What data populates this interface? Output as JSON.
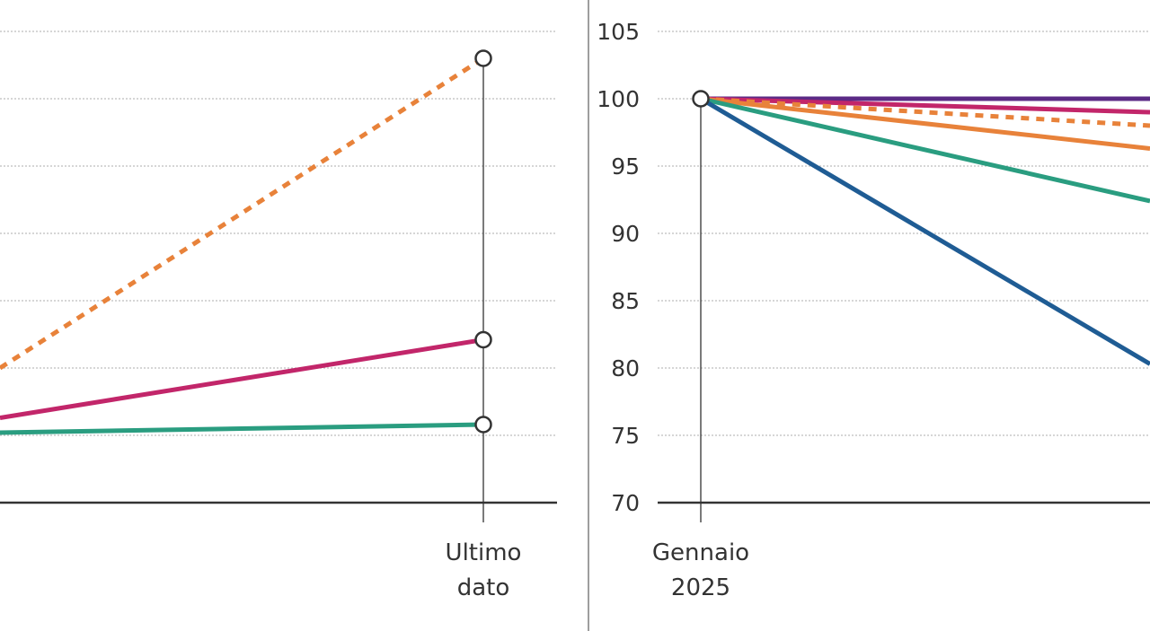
{
  "colors": {
    "grid": "#bdbdbd",
    "axis": "#333333",
    "divider": "#9e9e9e",
    "marker_fill": "#ffffff"
  },
  "chart_data": [
    {
      "type": "line",
      "title": "",
      "xlabel": "",
      "ylabel": "",
      "x_categories": [
        "",
        "Ultimo dato"
      ],
      "category_labels": [
        [
          "Ultimo",
          "dato"
        ]
      ],
      "ylim": [
        70,
        105
      ],
      "yticks": [
        70,
        75,
        80,
        85,
        90,
        95,
        100,
        105
      ],
      "ytick_labels_visible": false,
      "grid": true,
      "series": [
        {
          "color": "#e8823a",
          "dashed": true,
          "values": [
            80,
            103
          ]
        },
        {
          "color": "#c2266a",
          "values": [
            76.3,
            82.1
          ]
        },
        {
          "color": "#2a9d80",
          "values": [
            75.2,
            75.8
          ]
        }
      ]
    },
    {
      "type": "line",
      "title": "",
      "xlabel": "",
      "ylabel": "",
      "x_categories": [
        "Gennaio 2025",
        ""
      ],
      "category_labels": [
        [
          "Gennaio",
          "2025"
        ]
      ],
      "ylim": [
        70,
        105
      ],
      "yticks": [
        70,
        75,
        80,
        85,
        90,
        95,
        100,
        105
      ],
      "ytick_labels": [
        "70",
        "75",
        "80",
        "85",
        "90",
        "95",
        "100",
        "105"
      ],
      "grid": true,
      "series": [
        {
          "color": "#5b2a86",
          "values": [
            100,
            100
          ]
        },
        {
          "color": "#c2266a",
          "values": [
            100,
            99
          ]
        },
        {
          "color": "#e8823a",
          "dashed": true,
          "values": [
            100,
            98
          ]
        },
        {
          "color": "#e8823a",
          "values": [
            100,
            96.3
          ]
        },
        {
          "color": "#2a9d80",
          "values": [
            100,
            92.4
          ]
        },
        {
          "color": "#1f5c94",
          "values": [
            100,
            80.3
          ]
        }
      ]
    }
  ]
}
